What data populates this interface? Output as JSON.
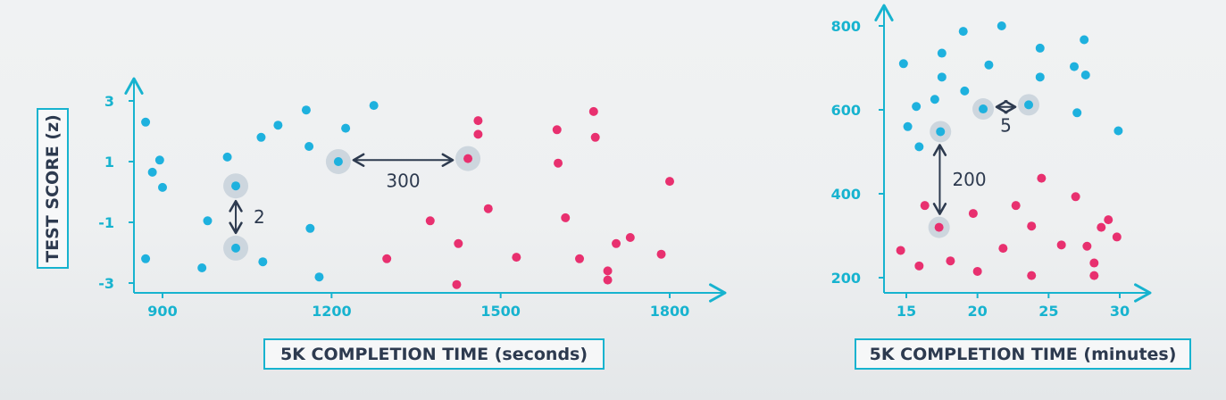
{
  "colors": {
    "axis": "#17b3cf",
    "tick_text": "#17b3cf",
    "blue_points": "#1eb1de",
    "pink_points": "#e8306f",
    "highlight": "#c9d3dc",
    "annotation": "#2d3a4f",
    "label_border": "#17b3cf"
  },
  "chart_data": [
    {
      "type": "scatter",
      "title": "",
      "xlabel": "5K COMPLETION TIME (seconds)",
      "ylabel": "TEST SCORE (z)",
      "xlim": [
        850,
        1910
      ],
      "ylim": [
        -3.2,
        3.2
      ],
      "x_ticks": [
        {
          "value": 900,
          "label": "900"
        },
        {
          "value": 1200,
          "label": "1200"
        },
        {
          "value": 1500,
          "label": "1500"
        },
        {
          "value": 1800,
          "label": "1800"
        }
      ],
      "y_ticks": [
        {
          "value": 3,
          "label": "3"
        },
        {
          "value": 1,
          "label": "1"
        },
        {
          "value": -1,
          "label": "-1"
        },
        {
          "value": -3,
          "label": "-3"
        }
      ],
      "grid": false,
      "series": [
        {
          "color": "blue",
          "points": [
            [
              870,
              2.3
            ],
            [
              882,
              0.65
            ],
            [
              895,
              1.05
            ],
            [
              900,
              0.15
            ],
            [
              870,
              -2.2
            ],
            [
              970,
              -2.5
            ],
            [
              980,
              -0.95
            ],
            [
              1015,
              1.15
            ],
            [
              1030,
              0.2
            ],
            [
              1030,
              -1.85
            ],
            [
              1075,
              1.8
            ],
            [
              1078,
              -2.3
            ],
            [
              1105,
              2.2
            ],
            [
              1155,
              2.7
            ],
            [
              1160,
              1.5
            ],
            [
              1162,
              -1.2
            ],
            [
              1178,
              -2.8
            ],
            [
              1212,
              1.0
            ],
            [
              1225,
              2.1
            ],
            [
              1275,
              2.85
            ]
          ]
        },
        {
          "color": "pink",
          "points": [
            [
              1298,
              -2.2
            ],
            [
              1375,
              -0.95
            ],
            [
              1422,
              -3.05
            ],
            [
              1425,
              -1.7
            ],
            [
              1442,
              1.1
            ],
            [
              1460,
              2.35
            ],
            [
              1460,
              1.9
            ],
            [
              1478,
              -0.55
            ],
            [
              1528,
              -2.15
            ],
            [
              1600,
              2.05
            ],
            [
              1602,
              0.95
            ],
            [
              1615,
              -0.85
            ],
            [
              1640,
              -2.2
            ],
            [
              1665,
              2.65
            ],
            [
              1668,
              1.8
            ],
            [
              1690,
              -2.6
            ],
            [
              1690,
              -2.9
            ],
            [
              1705,
              -1.7
            ],
            [
              1730,
              -1.5
            ],
            [
              1785,
              -2.05
            ],
            [
              1800,
              0.35
            ]
          ]
        }
      ],
      "annotations": [
        {
          "type": "vertical-distance",
          "from": [
            1030,
            0.2
          ],
          "to": [
            1030,
            -1.85
          ],
          "label": "2"
        },
        {
          "type": "horizontal-distance",
          "from": [
            1212,
            1.0
          ],
          "to": [
            1442,
            1.1
          ],
          "label": "300"
        }
      ]
    },
    {
      "type": "scatter",
      "title": "",
      "xlabel": "5K COMPLETION TIME (minutes)",
      "ylabel": "",
      "xlim": [
        13.5,
        31.5
      ],
      "ylim": [
        185,
        835
      ],
      "x_ticks": [
        {
          "value": 15,
          "label": "15"
        },
        {
          "value": 20,
          "label": "20"
        },
        {
          "value": 25,
          "label": "25"
        },
        {
          "value": 30,
          "label": "30"
        }
      ],
      "y_ticks": [
        {
          "value": 200,
          "label": "200"
        },
        {
          "value": 400,
          "label": "400"
        },
        {
          "value": 600,
          "label": "600"
        },
        {
          "value": 800,
          "label": "800"
        }
      ],
      "grid": false,
      "series": [
        {
          "color": "blue",
          "points": [
            [
              14.8,
              710
            ],
            [
              15.1,
              560
            ],
            [
              15.7,
              608
            ],
            [
              15.9,
              512
            ],
            [
              17.0,
              625
            ],
            [
              17.4,
              548
            ],
            [
              17.5,
              735
            ],
            [
              17.5,
              678
            ],
            [
              19.0,
              787
            ],
            [
              19.1,
              645
            ],
            [
              20.4,
              602
            ],
            [
              20.8,
              707
            ],
            [
              21.7,
              800
            ],
            [
              23.6,
              612
            ],
            [
              24.4,
              747
            ],
            [
              24.4,
              678
            ],
            [
              26.8,
              703
            ],
            [
              27.0,
              593
            ],
            [
              27.5,
              767
            ],
            [
              27.6,
              683
            ],
            [
              29.9,
              550
            ]
          ]
        },
        {
          "color": "pink",
          "points": [
            [
              14.6,
              265
            ],
            [
              15.9,
              228
            ],
            [
              16.3,
              372
            ],
            [
              17.3,
              320
            ],
            [
              18.1,
              240
            ],
            [
              19.7,
              353
            ],
            [
              20.0,
              215
            ],
            [
              21.8,
              270
            ],
            [
              22.7,
              372
            ],
            [
              23.8,
              323
            ],
            [
              23.8,
              205
            ],
            [
              24.5,
              437
            ],
            [
              25.9,
              278
            ],
            [
              26.9,
              393
            ],
            [
              27.7,
              275
            ],
            [
              28.2,
              235
            ],
            [
              28.2,
              205
            ],
            [
              28.7,
              320
            ],
            [
              29.2,
              338
            ],
            [
              29.8,
              297
            ]
          ]
        }
      ],
      "annotations": [
        {
          "type": "vertical-distance",
          "from": [
            17.4,
            548
          ],
          "to": [
            17.3,
            320
          ],
          "label": "200"
        },
        {
          "type": "horizontal-distance",
          "from": [
            20.4,
            602
          ],
          "to": [
            23.6,
            612
          ],
          "label": "5"
        }
      ]
    }
  ]
}
